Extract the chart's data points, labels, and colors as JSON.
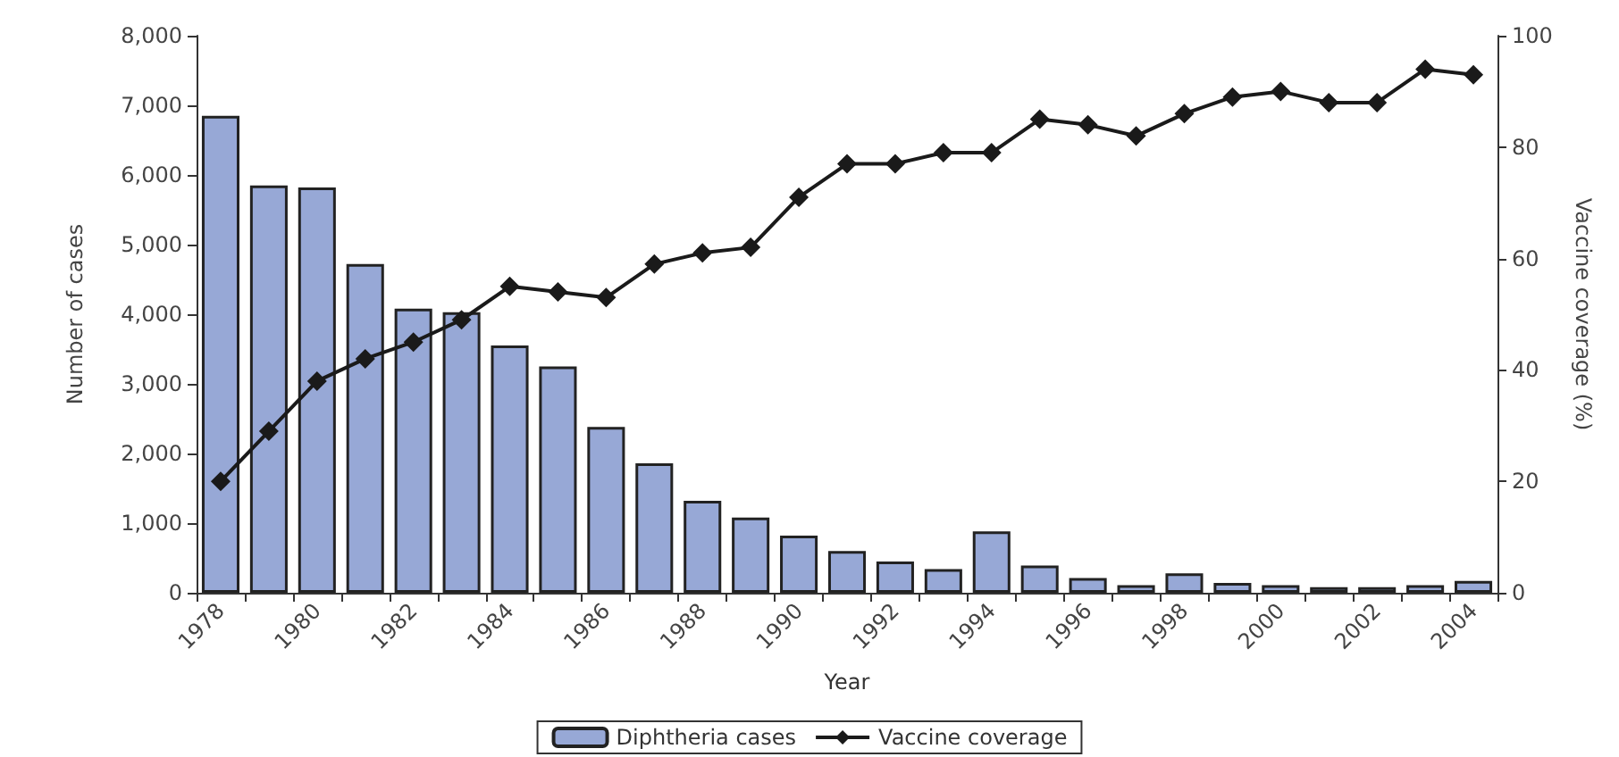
{
  "chart_data": {
    "type": "bar",
    "xlabel": "Year",
    "ylabel": "Number of cases",
    "y2label": "Vaccine coverage (%)",
    "categories": [
      "1978",
      null,
      "1980",
      null,
      "1982",
      null,
      "1984",
      null,
      "1986",
      null,
      "1988",
      null,
      "1990",
      null,
      "1992",
      null,
      "1994",
      null,
      "1996",
      null,
      "1998",
      null,
      "2000",
      null,
      "2002",
      null,
      "2004"
    ],
    "series": [
      {
        "name": "Diphtheria cases",
        "color": "#97a8d6",
        "values": [
          6850,
          5850,
          5820,
          4720,
          4080,
          4030,
          3550,
          3250,
          2380,
          1860,
          1320,
          1080,
          820,
          600,
          450,
          340,
          880,
          390,
          210,
          110,
          280,
          140,
          110,
          80,
          80,
          110,
          170
        ]
      },
      {
        "name": "Vaccine coverage",
        "type": "line",
        "axis": "y2",
        "color": "#1a1a1a",
        "marker": "diamond",
        "values": [
          20,
          29,
          38,
          42,
          45,
          49,
          55,
          54,
          53,
          59,
          61,
          62,
          71,
          77,
          77,
          79,
          79,
          85,
          84,
          82,
          86,
          89,
          90,
          88,
          88,
          94,
          93
        ]
      }
    ],
    "ylim": [
      0,
      8000
    ],
    "yticks": [
      {
        "value": 0,
        "label": "0"
      },
      {
        "value": 1000,
        "label": "1,000"
      },
      {
        "value": 2000,
        "label": "2,000"
      },
      {
        "value": 3000,
        "label": "3,000"
      },
      {
        "value": 4000,
        "label": "4,000"
      },
      {
        "value": 5000,
        "label": "5,000"
      },
      {
        "value": 6000,
        "label": "6,000"
      },
      {
        "value": 7000,
        "label": "7,000"
      },
      {
        "value": 8000,
        "label": "8,000"
      }
    ],
    "y2lim": [
      0,
      100
    ],
    "y2ticks": [
      0,
      20,
      40,
      60,
      80,
      100
    ],
    "grid": false,
    "legend": "bottom"
  }
}
